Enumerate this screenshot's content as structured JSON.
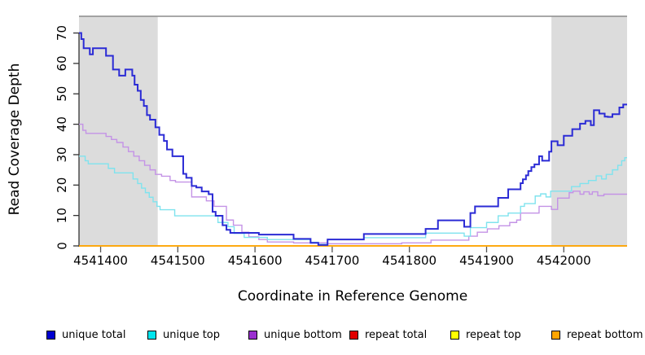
{
  "chart_data": {
    "type": "line",
    "subtype": "step",
    "title": "",
    "xlabel": "Coordinate in Reference Genome",
    "ylabel": "Read Coverage Depth",
    "xlim": [
      4541372,
      4542082
    ],
    "ylim": [
      0,
      75.5
    ],
    "x_ticks": [
      4541400,
      4541500,
      4541600,
      4541700,
      4541800,
      4541900,
      4542000
    ],
    "y_ticks": [
      0,
      10,
      20,
      30,
      40,
      50,
      60,
      70
    ],
    "grid": false,
    "legend_position": "bottom",
    "colors": {
      "shading": "#DCDCDC",
      "plot_top_border": "#8C8C8C",
      "axis": "#333333",
      "tick": "#555555"
    },
    "shaded_regions": [
      {
        "from": 4541372,
        "to": 4541474
      },
      {
        "from": 4541984,
        "to": 4542082
      }
    ],
    "legend": [
      {
        "label": "unique total",
        "color": "#0000D0"
      },
      {
        "label": "unique top",
        "color": "#00E5EE"
      },
      {
        "label": "unique bottom",
        "color": "#9A2FD0"
      },
      {
        "label": "repeat total",
        "color": "#E00000"
      },
      {
        "label": "repeat top",
        "color": "#FFFF00"
      },
      {
        "label": "repeat bottom",
        "color": "#FFA500"
      }
    ],
    "series": [
      {
        "name": "repeat total",
        "line_color": "#E00000",
        "width": 1.2,
        "points": [
          [
            4541372,
            0
          ]
        ]
      },
      {
        "name": "repeat top",
        "line_color": "#FFFF00",
        "width": 1.2,
        "points": [
          [
            4541372,
            0
          ]
        ]
      },
      {
        "name": "repeat bottom",
        "line_color": "#FFA500",
        "width": 1.8,
        "points": [
          [
            4541372,
            0
          ]
        ]
      },
      {
        "name": "unique bottom",
        "line_color": "#C493E6",
        "width": 1.4,
        "points": [
          [
            4541372,
            40
          ],
          [
            4541377,
            38
          ],
          [
            4541381,
            37
          ],
          [
            4541407,
            36
          ],
          [
            4541414,
            35
          ],
          [
            4541421,
            34
          ],
          [
            4541429,
            32.5
          ],
          [
            4541436,
            31
          ],
          [
            4541443,
            29.5
          ],
          [
            4541450,
            28
          ],
          [
            4541457,
            26.5
          ],
          [
            4541464,
            25
          ],
          [
            4541471,
            23.5
          ],
          [
            4541479,
            22.9
          ],
          [
            4541490,
            21.5
          ],
          [
            4541497,
            21
          ],
          [
            4541518,
            16.1
          ],
          [
            4541537,
            14.8
          ],
          [
            4541547,
            13
          ],
          [
            4541563,
            8.5
          ],
          [
            4541572,
            6.8
          ],
          [
            4541583,
            4.5
          ],
          [
            4541592,
            3
          ],
          [
            4541605,
            2.1
          ],
          [
            4541616,
            1.3
          ],
          [
            4541650,
            1
          ],
          [
            4541694,
            0.7
          ],
          [
            4541790,
            1
          ],
          [
            4541828,
            1.9
          ],
          [
            4541877,
            3.2
          ],
          [
            4541888,
            4.5
          ],
          [
            4541901,
            5.6
          ],
          [
            4541916,
            6.6
          ],
          [
            4541930,
            7.7
          ],
          [
            4541939,
            8.5
          ],
          [
            4541944,
            10.8
          ],
          [
            4541968,
            13
          ],
          [
            4541984,
            12
          ],
          [
            4541992,
            15.7
          ],
          [
            4542007,
            17.5
          ],
          [
            4542012,
            18
          ],
          [
            4542021,
            17
          ],
          [
            4542026,
            17.8
          ],
          [
            4542033,
            17
          ],
          [
            4542037,
            17.8
          ],
          [
            4542044,
            16.5
          ],
          [
            4542052,
            17
          ]
        ]
      },
      {
        "name": "unique top",
        "line_color": "#7FE3EE",
        "width": 1.4,
        "points": [
          [
            4541372,
            29.5
          ],
          [
            4541380,
            28
          ],
          [
            4541384,
            27
          ],
          [
            4541410,
            25.5
          ],
          [
            4541418,
            24
          ],
          [
            4541442,
            22
          ],
          [
            4541448,
            20.5
          ],
          [
            4541453,
            19
          ],
          [
            4541458,
            17.5
          ],
          [
            4541463,
            16
          ],
          [
            4541468,
            14.5
          ],
          [
            4541473,
            13
          ],
          [
            4541477,
            11.9
          ],
          [
            4541496,
            9.9
          ],
          [
            4541552,
            7.7
          ],
          [
            4541565,
            6.3
          ],
          [
            4541573,
            4.1
          ],
          [
            4541586,
            2.8
          ],
          [
            4541616,
            2.1
          ],
          [
            4541672,
            1.2
          ],
          [
            4541682,
            0.5
          ],
          [
            4541694,
            2.1
          ],
          [
            4541741,
            2.7
          ],
          [
            4541821,
            4.2
          ],
          [
            4541871,
            3.2
          ],
          [
            4541879,
            6
          ],
          [
            4541900,
            7.7
          ],
          [
            4541915,
            9.9
          ],
          [
            4541928,
            10.8
          ],
          [
            4541944,
            13
          ],
          [
            4541949,
            13.9
          ],
          [
            4541963,
            16.4
          ],
          [
            4541970,
            17.1
          ],
          [
            4541977,
            16.1
          ],
          [
            4541983,
            18
          ],
          [
            4542010,
            19.5
          ],
          [
            4542021,
            20.5
          ],
          [
            4542032,
            21.5
          ],
          [
            4542042,
            23
          ],
          [
            4542049,
            22
          ],
          [
            4542055,
            23.5
          ],
          [
            4542063,
            25
          ],
          [
            4542070,
            26.5
          ],
          [
            4542075,
            28
          ],
          [
            4542079,
            29
          ]
        ]
      },
      {
        "name": "unique total",
        "line_color": "#2B2BD5",
        "width": 2,
        "points": [
          [
            4541372,
            70
          ],
          [
            4541375,
            68
          ],
          [
            4541378,
            65
          ],
          [
            4541386,
            63
          ],
          [
            4541390,
            65
          ],
          [
            4541407,
            62.5
          ],
          [
            4541416,
            58
          ],
          [
            4541424,
            56
          ],
          [
            4541432,
            58
          ],
          [
            4541441,
            56
          ],
          [
            4541444,
            53
          ],
          [
            4541448,
            51
          ],
          [
            4541452,
            48
          ],
          [
            4541456,
            46
          ],
          [
            4541460,
            43
          ],
          [
            4541464,
            41.5
          ],
          [
            4541471,
            39
          ],
          [
            4541476,
            36.5
          ],
          [
            4541482,
            34.5
          ],
          [
            4541486,
            31.7
          ],
          [
            4541493,
            29.5
          ],
          [
            4541507,
            23.7
          ],
          [
            4541511,
            22.4
          ],
          [
            4541518,
            19.7
          ],
          [
            4541524,
            19.2
          ],
          [
            4541531,
            17.9
          ],
          [
            4541540,
            17
          ],
          [
            4541545,
            11.2
          ],
          [
            4541549,
            9.9
          ],
          [
            4541558,
            6.8
          ],
          [
            4541563,
            5.3
          ],
          [
            4541568,
            4.3
          ],
          [
            4541605,
            3.7
          ],
          [
            4541650,
            2.3
          ],
          [
            4541672,
            1
          ],
          [
            4541682,
            0.3
          ],
          [
            4541694,
            2.1
          ],
          [
            4541741,
            3.9
          ],
          [
            4541821,
            5.6
          ],
          [
            4541837,
            8.4
          ],
          [
            4541871,
            6.3
          ],
          [
            4541879,
            10.8
          ],
          [
            4541885,
            13
          ],
          [
            4541915,
            15.8
          ],
          [
            4541928,
            18.6
          ],
          [
            4541944,
            20.6
          ],
          [
            4541947,
            21.9
          ],
          [
            4541951,
            23.2
          ],
          [
            4541954,
            24.6
          ],
          [
            4541958,
            25.9
          ],
          [
            4541962,
            26.8
          ],
          [
            4541968,
            29.5
          ],
          [
            4541972,
            28
          ],
          [
            4541981,
            31
          ],
          [
            4541984,
            34.4
          ],
          [
            4541992,
            33.1
          ],
          [
            4542000,
            36.2
          ],
          [
            4542011,
            38.4
          ],
          [
            4542021,
            40.2
          ],
          [
            4542028,
            41.1
          ],
          [
            4542035,
            39.7
          ],
          [
            4542039,
            44.6
          ],
          [
            4542046,
            43.5
          ],
          [
            4542053,
            42.5
          ],
          [
            4542057,
            42.4
          ],
          [
            4542063,
            43.3
          ],
          [
            4542072,
            45.5
          ],
          [
            4542077,
            46.5
          ]
        ]
      }
    ]
  }
}
